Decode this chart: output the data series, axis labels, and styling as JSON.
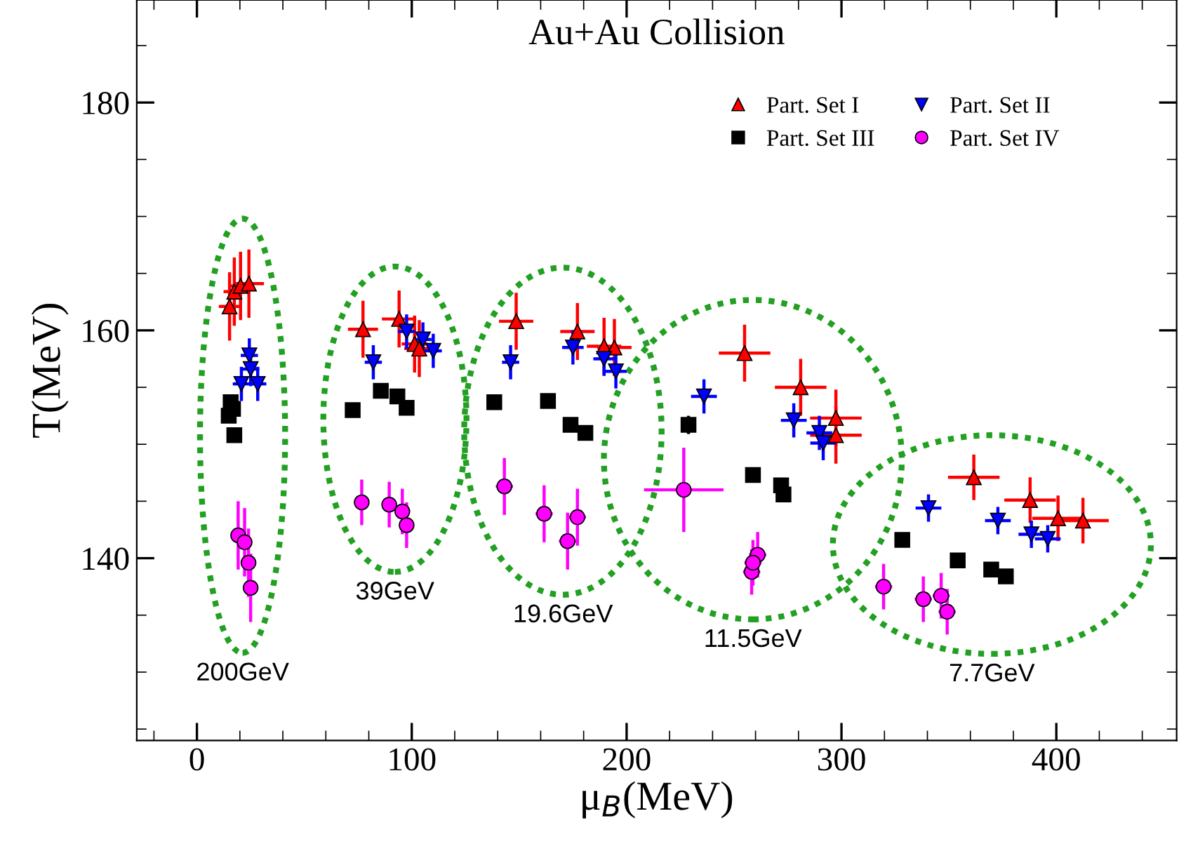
{
  "chart_data": {
    "type": "scatter",
    "title": "Au+Au Collision",
    "xlabel": "μ$_{B}$(MeV)",
    "ylabel": "T(MeV)",
    "xlim": [
      -28,
      456
    ],
    "ylim": [
      124,
      189
    ],
    "xticks": [
      0,
      100,
      200,
      300,
      400
    ],
    "yticks": [
      140,
      160,
      180
    ],
    "grid": false,
    "legend": "top right",
    "series": [
      {
        "name": "Part. Set I",
        "color": "#ff0000",
        "marker": "triangle",
        "x": [
          15.2,
          17.4,
          20.3,
          24.2,
          77.3,
          94.1,
          101.3,
          103.5,
          148.6,
          177.1,
          189.5,
          194.3,
          254.9,
          281,
          297.4,
          297.4,
          361.6,
          387.8,
          400.8,
          412.4
        ],
        "values": [
          162.1,
          163.4,
          163.9,
          164.1,
          160.1,
          161.0,
          158.8,
          158.4,
          160.8,
          159.9,
          158.6,
          158.5,
          158.0,
          155.0,
          152.3,
          150.8,
          147.1,
          145.1,
          143.5,
          143.3
        ],
        "errors": [
          3,
          3,
          3,
          3,
          2.5,
          2.5,
          2.5,
          2.5,
          2.5,
          2.5,
          2.5,
          2.5,
          2.5,
          2.5,
          2.5,
          2.5,
          2,
          2,
          2,
          2
        ],
        "xerrors": [
          5,
          5,
          5,
          7,
          7,
          8,
          6,
          7,
          8,
          8,
          8,
          8,
          12,
          12,
          12,
          12,
          12,
          12,
          12,
          12
        ]
      },
      {
        "name": "Part. Set II",
        "color": "#0000ff",
        "marker": "triangle_down",
        "x": [
          20.7,
          24.4,
          25,
          28.3,
          82.1,
          97.6,
          105.2,
          110,
          146,
          175,
          189.5,
          195,
          236,
          277.8,
          289.7,
          291.5,
          340.5,
          372.8,
          388.4,
          396
        ],
        "values": [
          155.3,
          157.8,
          156.6,
          155.3,
          157.2,
          159.9,
          159.2,
          158.2,
          157.2,
          158.5,
          157.5,
          156.4,
          154.2,
          152.1,
          151.0,
          150.1,
          144.4,
          143.3,
          142.1,
          141.7
        ],
        "errors": [
          1.5,
          1.5,
          1.5,
          1.5,
          1.5,
          1.5,
          1.5,
          1.5,
          1.5,
          1.5,
          1.5,
          1.5,
          1.5,
          1.5,
          1.5,
          1.5,
          1.2,
          1.2,
          1.2,
          1.2
        ],
        "xerrors": [
          4,
          4,
          4,
          4,
          4,
          4,
          4,
          4,
          4,
          5,
          5,
          5,
          6,
          6,
          6,
          6,
          6,
          6,
          6,
          6
        ]
      },
      {
        "name": "Part. Set III",
        "color": "#000000",
        "marker": "square",
        "x": [
          15.7,
          16.8,
          14.8,
          17.4,
          72.5,
          85.6,
          93.3,
          97.6,
          138.4,
          163.4,
          173.9,
          180.8,
          228.8,
          258.8,
          271.9,
          273,
          328.3,
          354.1,
          369.7,
          376.5
        ],
        "values": [
          153.7,
          153.1,
          152.5,
          150.8,
          153.0,
          154.7,
          154.2,
          153.2,
          153.7,
          153.8,
          151.7,
          151.0,
          151.7,
          147.3,
          146.4,
          145.6,
          141.6,
          139.8,
          139.0,
          138.4
        ],
        "errors": [
          0.6,
          0.6,
          0.6,
          0.6,
          0.6,
          0.6,
          0.6,
          0.6,
          0.6,
          0.6,
          0.6,
          0.6,
          0.8,
          0.6,
          0.6,
          0.6,
          0.6,
          0.6,
          0.6,
          0.6
        ]
      },
      {
        "name": "Part. Set IV",
        "color": "#ff00ff",
        "marker": "circle",
        "x": [
          19.2,
          22.2,
          24,
          25,
          76.7,
          89.5,
          95.6,
          97.6,
          143.1,
          161.6,
          172.5,
          177.1,
          226.6,
          258.2,
          261,
          258.8,
          319.6,
          338.1,
          346.4,
          349.2
        ],
        "values": [
          142.0,
          141.4,
          139.6,
          137.4,
          144.9,
          144.7,
          144.1,
          142.9,
          146.3,
          143.9,
          141.5,
          143.6,
          146.0,
          138.8,
          140.3,
          139.6,
          137.5,
          136.4,
          136.7,
          135.3
        ],
        "errors": [
          3,
          3,
          3,
          3,
          2,
          2,
          2,
          2,
          2.5,
          2.5,
          2.5,
          2.5,
          3.7,
          2,
          2,
          2,
          2,
          2,
          2,
          2
        ],
        "xerrors": [
          2,
          2,
          2,
          2,
          2,
          2,
          2,
          2,
          4,
          4,
          4,
          4,
          18.5,
          4,
          4,
          4,
          4,
          4,
          4,
          4
        ]
      }
    ],
    "annotations": [
      "200GeV",
      "39GeV",
      "19.6GeV",
      "11.5GeV",
      "7.7GeV"
    ]
  }
}
